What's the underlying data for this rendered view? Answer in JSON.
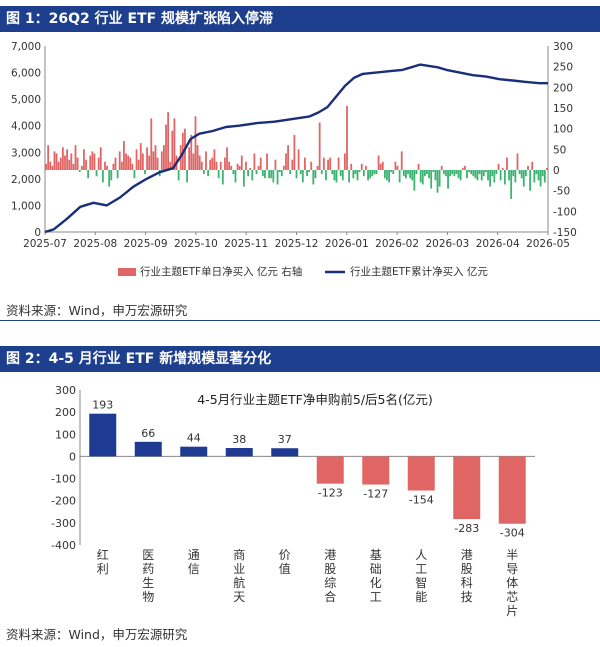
{
  "fig1": {
    "title": "图 1：26Q2 行业 ETF 规模扩张陷入停滞",
    "source": "资料来源：Wind，申万宏源研究"
  },
  "fig2": {
    "title": "图 2：4-5 月行业 ETF 新增规模显著分化",
    "source": "资料来源：Wind，申万宏源研究"
  },
  "chart_data": [
    {
      "type": "bar+line",
      "title": "",
      "x_ticks": [
        "2025-07",
        "2025-08",
        "2025-09",
        "2025-10",
        "2025-11",
        "2025-12",
        "2026-01",
        "2026-02",
        "2026-03",
        "2026-04",
        "2026-05"
      ],
      "y_left": {
        "ticks": [
          0,
          1000,
          2000,
          3000,
          4000,
          5000,
          6000,
          7000
        ],
        "range": [
          0,
          7000
        ]
      },
      "y_right": {
        "ticks": [
          -150,
          -100,
          -50,
          0,
          50,
          100,
          150,
          200,
          250,
          300
        ],
        "range": [
          -150,
          300
        ]
      },
      "colors": {
        "bar": "#e06666",
        "bar_neg": "#3cb371",
        "line": "#1a2f7a"
      },
      "series": [
        {
          "name": "行业主题ETF单日净买入 亿元 右轴",
          "kind": "bar",
          "axis": "right",
          "values": [
            15,
            60,
            20,
            10,
            45,
            40,
            20,
            30,
            55,
            35,
            50,
            25,
            40,
            15,
            60,
            30,
            -5,
            10,
            50,
            25,
            -20,
            35,
            45,
            40,
            -15,
            30,
            55,
            -30,
            20,
            10,
            -40,
            -25,
            15,
            30,
            -20,
            45,
            20,
            70,
            40,
            35,
            30,
            15,
            -20,
            50,
            25,
            65,
            40,
            -10,
            55,
            35,
            125,
            45,
            60,
            30,
            -15,
            45,
            60,
            110,
            140,
            20,
            95,
            125,
            35,
            -25,
            60,
            90,
            100,
            -30,
            55,
            85,
            40,
            130,
            60,
            35,
            20,
            -10,
            45,
            -15,
            25,
            30,
            50,
            20,
            -20,
            20,
            -35,
            30,
            55,
            20,
            10,
            -10,
            -30,
            15,
            10,
            35,
            -40,
            20,
            -15,
            5,
            -25,
            40,
            -10,
            10,
            30,
            -15,
            -20,
            40,
            -20,
            -20,
            -30,
            25,
            -35,
            -5,
            -15,
            10,
            40,
            60,
            -10,
            25,
            85,
            -20,
            50,
            -10,
            -30,
            30,
            -15,
            -5,
            20,
            -35,
            -20,
            10,
            115,
            -10,
            30,
            -25,
            25,
            30,
            -10,
            -25,
            -30,
            30,
            -15,
            -25,
            40,
            155,
            -30,
            15,
            -20,
            -10,
            -25,
            -5,
            15,
            -15,
            10,
            -25,
            -20,
            -15,
            -10,
            -10,
            35,
            15,
            20,
            -20,
            -25,
            -30,
            -5,
            -10,
            20,
            10,
            -30,
            45,
            -15,
            -20,
            -10,
            -20,
            -25,
            -50,
            -10,
            15,
            -30,
            -35,
            -15,
            -10,
            -20,
            -45,
            -5,
            -25,
            -55,
            -40,
            10,
            -10,
            -15,
            -45,
            -15,
            -10,
            -15,
            -10,
            -20,
            -25,
            5,
            10,
            -20,
            -5,
            -10,
            -15,
            -20,
            -25,
            -10,
            -25,
            -15,
            -5,
            -25,
            -40,
            -15,
            -30,
            -10,
            15,
            -25,
            5,
            -35,
            30,
            -25,
            -70,
            -15,
            -30,
            40,
            -10,
            -20,
            -40,
            -15,
            10,
            -50,
            20,
            -30,
            -10,
            -25,
            -40,
            -15,
            -30,
            5
          ]
        },
        {
          "name": "行业主题ETF累计净买入 亿元",
          "kind": "line",
          "axis": "left",
          "points": [
            [
              0,
              0
            ],
            [
              10,
              100
            ],
            [
              25,
              500
            ],
            [
              40,
              950
            ],
            [
              55,
              1100
            ],
            [
              70,
              1000
            ],
            [
              85,
              1300
            ],
            [
              100,
              1700
            ],
            [
              115,
              2000
            ],
            [
              130,
              2250
            ],
            [
              145,
              2400
            ],
            [
              155,
              2900
            ],
            [
              165,
              3500
            ],
            [
              175,
              3700
            ],
            [
              190,
              3800
            ],
            [
              205,
              3950
            ],
            [
              220,
              4000
            ],
            [
              240,
              4100
            ],
            [
              260,
              4150
            ],
            [
              280,
              4250
            ],
            [
              300,
              4350
            ],
            [
              310,
              4500
            ],
            [
              320,
              4700
            ],
            [
              330,
              5100
            ],
            [
              340,
              5500
            ],
            [
              350,
              5800
            ],
            [
              360,
              5950
            ],
            [
              375,
              6000
            ],
            [
              390,
              6050
            ],
            [
              405,
              6100
            ],
            [
              415,
              6200
            ],
            [
              425,
              6300
            ],
            [
              435,
              6250
            ],
            [
              445,
              6200
            ],
            [
              455,
              6100
            ],
            [
              470,
              6000
            ],
            [
              485,
              5900
            ],
            [
              500,
              5850
            ],
            [
              515,
              5750
            ],
            [
              530,
              5700
            ],
            [
              545,
              5650
            ],
            [
              560,
              5600
            ],
            [
              570,
              5600
            ]
          ]
        }
      ],
      "legend_placement": "bottom"
    },
    {
      "type": "bar",
      "title": "4-5月行业主题ETF净申购前5/后5名(亿元)",
      "categories": [
        "红利",
        "医药生物",
        "通信",
        "商业航天",
        "价值",
        "港股综合",
        "基础化工",
        "人工智能",
        "港股科技",
        "半导体芯片"
      ],
      "values": [
        193,
        66,
        44,
        38,
        37,
        -123,
        -127,
        -154,
        -283,
        -304
      ],
      "ylim": [
        -400,
        300
      ],
      "y_ticks": [
        -400,
        -300,
        -200,
        -100,
        0,
        100,
        200,
        300
      ],
      "colors": {
        "positive": "#1f3a93",
        "negative": "#e06666"
      }
    }
  ]
}
